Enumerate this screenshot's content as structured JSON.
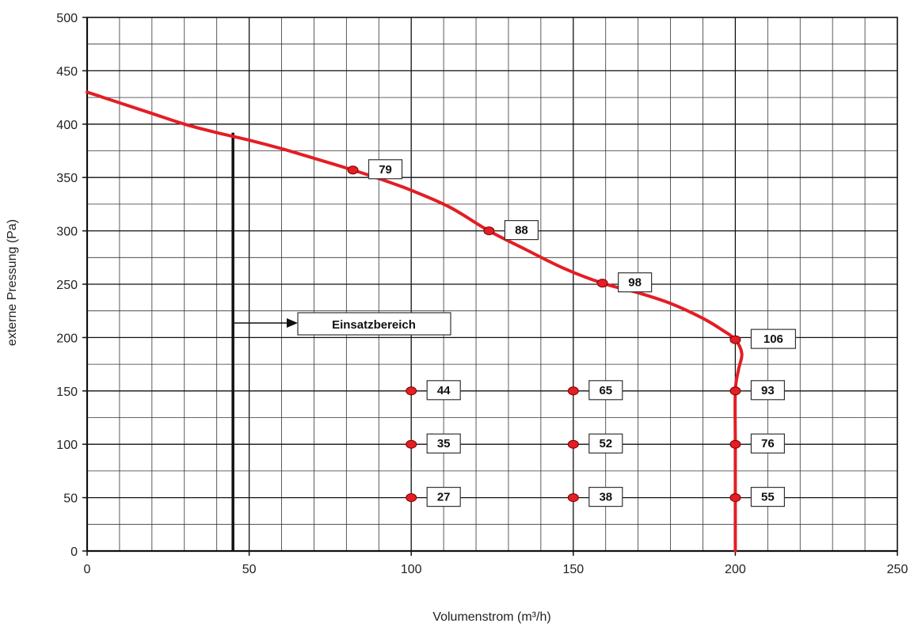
{
  "chart_data": {
    "type": "line",
    "xlabel": "Volumenstrom (m³/h)",
    "ylabel": "externe Pressung (Pa)",
    "xlim": [
      0,
      250
    ],
    "ylim": [
      0,
      500
    ],
    "x_ticks": [
      0,
      50,
      100,
      150,
      200,
      250
    ],
    "y_ticks": [
      0,
      50,
      100,
      150,
      200,
      250,
      300,
      350,
      400,
      450,
      500
    ],
    "x_minor_step": 10,
    "y_minor_step": 25,
    "grid": true,
    "curve_color": "#e31e24",
    "point_color": "#e31e24",
    "series": [
      {
        "values_xy": [
          [
            0,
            430
          ],
          [
            10,
            420
          ],
          [
            20,
            410
          ],
          [
            30,
            400
          ],
          [
            40,
            392
          ],
          [
            50,
            385
          ],
          [
            60,
            377
          ],
          [
            70,
            368
          ],
          [
            82,
            357
          ],
          [
            90,
            349
          ],
          [
            100,
            338
          ],
          [
            112,
            322
          ],
          [
            124,
            300
          ],
          [
            135,
            283
          ],
          [
            147,
            265
          ],
          [
            159,
            251
          ],
          [
            170,
            242
          ],
          [
            180,
            232
          ],
          [
            190,
            218
          ],
          [
            196,
            207
          ],
          [
            200,
            198
          ],
          [
            202,
            185
          ],
          [
            201,
            170
          ],
          [
            200,
            150
          ],
          [
            200,
            100
          ],
          [
            200,
            50
          ],
          [
            200,
            0
          ]
        ]
      }
    ],
    "operating_limit": {
      "x": 45,
      "y_top": 392
    },
    "annotation": "Einsatzbereich",
    "points": [
      {
        "x": 82,
        "y": 357,
        "label": "79"
      },
      {
        "x": 124,
        "y": 300,
        "label": "88"
      },
      {
        "x": 159,
        "y": 251,
        "label": "98"
      },
      {
        "x": 200,
        "y": 198,
        "label": "106"
      },
      {
        "x": 100,
        "y": 150,
        "label": "44"
      },
      {
        "x": 150,
        "y": 150,
        "label": "65"
      },
      {
        "x": 200,
        "y": 150,
        "label": "93"
      },
      {
        "x": 100,
        "y": 100,
        "label": "35"
      },
      {
        "x": 150,
        "y": 100,
        "label": "52"
      },
      {
        "x": 200,
        "y": 100,
        "label": "76"
      },
      {
        "x": 100,
        "y": 50,
        "label": "27"
      },
      {
        "x": 150,
        "y": 50,
        "label": "38"
      },
      {
        "x": 200,
        "y": 50,
        "label": "55"
      }
    ]
  }
}
